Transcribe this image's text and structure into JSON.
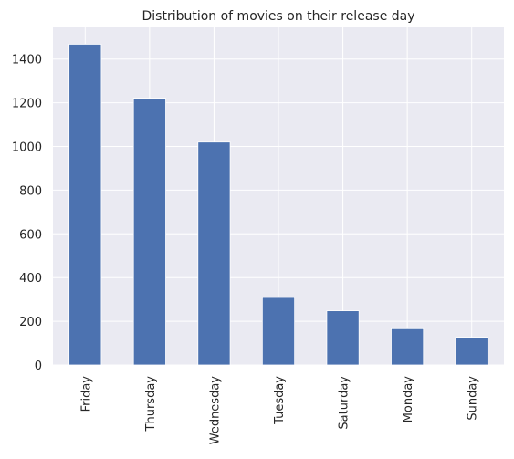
{
  "chart_data": {
    "type": "bar",
    "title": "Distribution of movies on their release day",
    "xlabel": "",
    "ylabel": "",
    "categories": [
      "Friday",
      "Thursday",
      "Wednesday",
      "Tuesday",
      "Saturday",
      "Monday",
      "Sunday"
    ],
    "values": [
      1468,
      1221,
      1020,
      309,
      248,
      170,
      127
    ],
    "ylim": [
      0,
      1545
    ],
    "yticks": [
      0,
      200,
      400,
      600,
      800,
      1000,
      1200,
      1400
    ],
    "grid": true,
    "legend": "none",
    "colors": {
      "bar": "#4C72B0",
      "plot_background": "#EAEAF2",
      "grid": "#FFFFFF",
      "text": "#262626"
    }
  }
}
